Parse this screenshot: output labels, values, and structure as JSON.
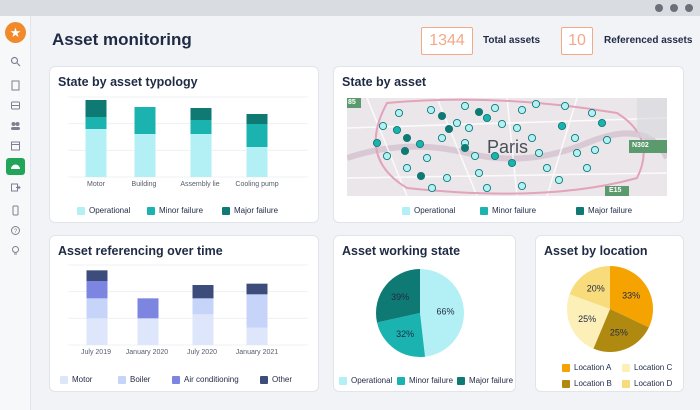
{
  "app": {
    "title": "Asset monitoring"
  },
  "kpis": [
    {
      "value": "1344",
      "label": "Total assets"
    },
    {
      "value": "10",
      "label": "Referenced assets"
    }
  ],
  "sidebar": {
    "icons": [
      "logo-star-icon",
      "search-icon",
      "document-icon",
      "database-icon",
      "users-icon",
      "calendar-icon",
      "dashboard-icon",
      "export-icon",
      "mobile-icon",
      "help-icon",
      "lightbulb-icon"
    ],
    "active": "dashboard-icon"
  },
  "colors": {
    "operational": "#b3f0f5",
    "minor": "#1ab3b0",
    "major": "#0e7a73",
    "motor": "#dde6fb",
    "boiler": "#c5d4f8",
    "aircon": "#7c85e0",
    "other": "#3c4d7c",
    "locA": "#f5a300",
    "locB": "#b08a10",
    "locC": "#fcefb8",
    "locD": "#f8db7a"
  },
  "state_by_typology": {
    "title": "State by asset typology",
    "legend": [
      "Operational",
      "Minor failure",
      "Major failure"
    ],
    "chart_data": {
      "type": "bar",
      "categories": [
        "Motor",
        "Building",
        "Assembly lie",
        "Cooling pump"
      ],
      "series": [
        {
          "name": "Operational",
          "values": [
            48,
            43,
            43,
            30
          ]
        },
        {
          "name": "Minor failure",
          "values": [
            12,
            27,
            14,
            23
          ]
        },
        {
          "name": "Major failure",
          "values": [
            17,
            0,
            12,
            10
          ]
        }
      ],
      "ylim": [
        0,
        80
      ]
    }
  },
  "state_by_asset": {
    "title": "State by asset",
    "map_label": "Paris",
    "road_labels": [
      "85",
      "N302",
      "E15"
    ],
    "legend": [
      "Operational",
      "Minor failure",
      "Major failure"
    ]
  },
  "referencing_over_time": {
    "title": "Asset referencing over time",
    "legend": [
      "Motor",
      "Boiler",
      "Air conditioning",
      "Other"
    ],
    "chart_data": {
      "type": "bar",
      "categories": [
        "July 2019",
        "January 2020",
        "July 2020",
        "January 2021"
      ],
      "series": [
        {
          "name": "Motor",
          "values": [
            20,
            20,
            23,
            13
          ]
        },
        {
          "name": "Boiler",
          "values": [
            15,
            0,
            12,
            25
          ]
        },
        {
          "name": "Air conditioning",
          "values": [
            13,
            15,
            0,
            0
          ]
        },
        {
          "name": "Other",
          "values": [
            8,
            0,
            10,
            8
          ]
        }
      ],
      "ylim": [
        0,
        60
      ]
    }
  },
  "working_state": {
    "title": "Asset working state",
    "legend": [
      "Operational",
      "Minor failure",
      "Major failure"
    ],
    "chart_data": {
      "type": "pie",
      "labels": [
        "Operational",
        "Minor failure",
        "Major failure"
      ],
      "values": [
        66,
        32,
        39
      ],
      "value_labels": [
        "66%",
        "32%",
        "39%"
      ]
    }
  },
  "by_location": {
    "title": "Asset by location",
    "legend": [
      "Location A",
      "Location C",
      "Location B",
      "Location D"
    ],
    "chart_data": {
      "type": "pie",
      "labels": [
        "Location A",
        "Location B",
        "Location C",
        "Location D"
      ],
      "values": [
        33,
        25,
        25,
        20
      ],
      "value_labels": [
        "33%",
        "25%",
        "25%",
        "20%"
      ]
    }
  }
}
